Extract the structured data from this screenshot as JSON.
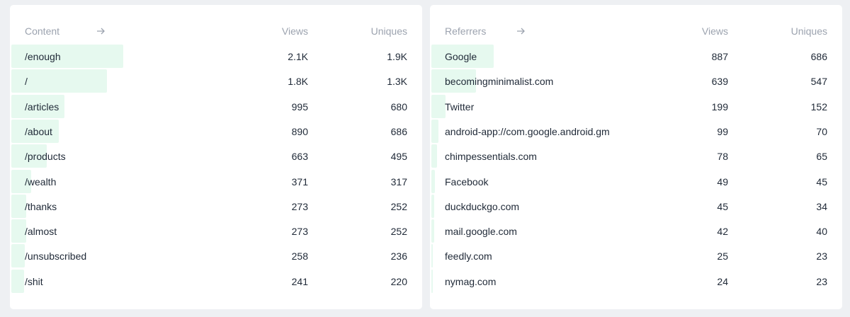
{
  "panels": [
    {
      "title": "Content",
      "columns": [
        "Views",
        "Uniques"
      ],
      "rows": [
        {
          "label": "/enough",
          "views": {
            "value": 2100,
            "label": "2.1K"
          },
          "uniques": "1.9K"
        },
        {
          "label": "/",
          "views": {
            "value": 1800,
            "label": "1.8K"
          },
          "uniques": "1.3K"
        },
        {
          "label": "/articles",
          "views": 995,
          "uniques": 680
        },
        {
          "label": "/about",
          "views": 890,
          "uniques": 686
        },
        {
          "label": "/products",
          "views": 663,
          "uniques": 495
        },
        {
          "label": "/wealth",
          "views": 371,
          "uniques": 317
        },
        {
          "label": "/thanks",
          "views": 273,
          "uniques": 252
        },
        {
          "label": "/almost",
          "views": 273,
          "uniques": 252
        },
        {
          "label": "/unsubscribed",
          "views": 258,
          "uniques": 236
        },
        {
          "label": "/shit",
          "views": 241,
          "uniques": 220
        }
      ]
    },
    {
      "title": "Referrers",
      "columns": [
        "Views",
        "Uniques"
      ],
      "rows": [
        {
          "label": "Google",
          "views": 887,
          "uniques": 686
        },
        {
          "label": "becomingminimalist.com",
          "views": 639,
          "uniques": 547
        },
        {
          "label": "Twitter",
          "views": 199,
          "uniques": 152
        },
        {
          "label": "android-app://com.google.android.gm",
          "views": 99,
          "uniques": 70
        },
        {
          "label": "chimpessentials.com",
          "views": 78,
          "uniques": 65
        },
        {
          "label": "Facebook",
          "views": 49,
          "uniques": 45
        },
        {
          "label": "duckduckgo.com",
          "views": 45,
          "uniques": 34
        },
        {
          "label": "mail.google.com",
          "views": 42,
          "uniques": 40
        },
        {
          "label": "feedly.com",
          "views": 25,
          "uniques": 23
        },
        {
          "label": "nymag.com",
          "views": 24,
          "uniques": 23
        }
      ]
    }
  ]
}
